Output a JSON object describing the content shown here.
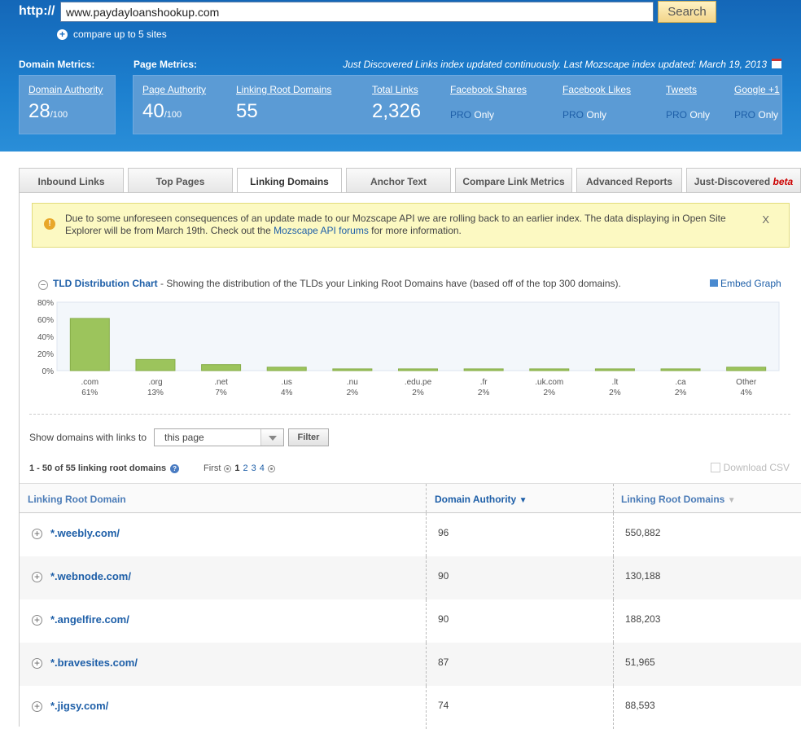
{
  "header": {
    "http_label": "http://",
    "url_value": "www.paydayloanshookup.com",
    "search_label": "Search",
    "compare_label": "compare up to 5 sites",
    "domain_metrics_label": "Domain Metrics:",
    "page_metrics_label": "Page Metrics:",
    "index_note": "Just Discovered Links index updated continuously. Last Mozscape index updated: March 19, 2013"
  },
  "metrics": {
    "domain_authority": {
      "label": "Domain Authority",
      "value": "28",
      "denom": "/100"
    },
    "page_authority": {
      "label": "Page Authority",
      "value": "40",
      "denom": "/100"
    },
    "linking_root_domains": {
      "label": "Linking Root Domains",
      "value": "55"
    },
    "total_links": {
      "label": "Total Links",
      "value": "2,326"
    },
    "facebook_shares": {
      "label": "Facebook Shares"
    },
    "facebook_likes": {
      "label": "Facebook Likes"
    },
    "tweets": {
      "label": "Tweets"
    },
    "google_plus": {
      "label": "Google +1"
    },
    "pro_label": "PRO",
    "only_label": "Only"
  },
  "tabs": [
    {
      "label": "Inbound Links"
    },
    {
      "label": "Top Pages"
    },
    {
      "label": "Linking Domains"
    },
    {
      "label": "Anchor Text"
    },
    {
      "label": "Compare Link Metrics"
    },
    {
      "label": "Advanced Reports"
    },
    {
      "label": "Just-Discovered",
      "badge": "beta"
    }
  ],
  "notice": {
    "text1": "Due to some unforeseen consequences of an update made to our Mozscape API we are rolling back to an earlier index. The data displaying in Open Site Explorer will be from March 19th. Check out the ",
    "link": "Mozscape API forums",
    "text2": " for more information.",
    "close": "X"
  },
  "chart_section": {
    "title": "TLD Distribution Chart",
    "description": " - Showing the distribution of the TLDs your Linking Root Domains have (based off of the top 300 domains).",
    "embed_label": "Embed Graph"
  },
  "chart_data": {
    "type": "bar",
    "categories": [
      ".com",
      ".org",
      ".net",
      ".us",
      ".nu",
      ".edu.pe",
      ".fr",
      ".uk.com",
      ".lt",
      ".ca",
      "Other"
    ],
    "values": [
      61,
      13,
      7,
      4,
      2,
      2,
      2,
      2,
      2,
      2,
      4
    ],
    "value_labels": [
      "61%",
      "13%",
      "7%",
      "4%",
      "2%",
      "2%",
      "2%",
      "2%",
      "2%",
      "2%",
      "4%"
    ],
    "ylim": [
      0,
      80
    ],
    "yticks": [
      "0%",
      "20%",
      "40%",
      "60%",
      "80%"
    ],
    "bar_color": "#9cc45c",
    "grid": false
  },
  "filter": {
    "label": "Show domains with links to",
    "selected": "this page",
    "button": "Filter"
  },
  "results": {
    "count_text": "1 - 50 of 55 linking root domains",
    "pager_first": "First",
    "pages": [
      "1",
      "2",
      "3",
      "4"
    ],
    "download_csv": "Download CSV"
  },
  "table": {
    "columns": [
      "Linking Root Domain",
      "Domain Authority",
      "Linking Root Domains"
    ],
    "rows": [
      {
        "domain": "*.weebly.com/",
        "da": "96",
        "lrd": "550,882"
      },
      {
        "domain": "*.webnode.com/",
        "da": "90",
        "lrd": "130,188"
      },
      {
        "domain": "*.angelfire.com/",
        "da": "90",
        "lrd": "188,203"
      },
      {
        "domain": "*.bravesites.com/",
        "da": "87",
        "lrd": "51,965"
      },
      {
        "domain": "*.jigsy.com/",
        "da": "74",
        "lrd": "88,593"
      }
    ]
  }
}
